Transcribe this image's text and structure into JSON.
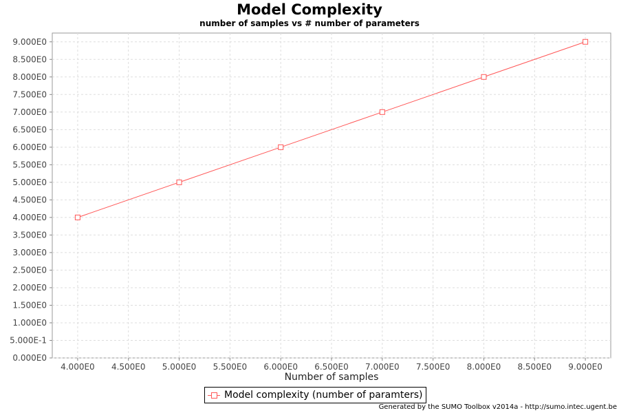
{
  "chart_data": {
    "type": "line",
    "title": "Model Complexity",
    "subtitle": "number of samples vs # number of parameters",
    "xlabel": "Number of samples",
    "ylabel": "",
    "xlim": [
      3.75,
      9.25
    ],
    "ylim": [
      0,
      9.25
    ],
    "x_ticks": [
      "4.000E0",
      "4.500E0",
      "5.000E0",
      "5.500E0",
      "6.000E0",
      "6.500E0",
      "7.000E0",
      "7.500E0",
      "8.000E0",
      "8.500E0",
      "9.000E0"
    ],
    "y_ticks": [
      "0.000E0",
      "5.000E-1",
      "1.000E0",
      "1.500E0",
      "2.000E0",
      "2.500E0",
      "3.000E0",
      "3.500E0",
      "4.000E0",
      "4.500E0",
      "5.000E0",
      "5.500E0",
      "6.000E0",
      "6.500E0",
      "7.000E0",
      "7.500E0",
      "8.000E0",
      "8.500E0",
      "9.000E0"
    ],
    "grid": true,
    "legend": "bottom-center",
    "series": [
      {
        "name": "Model complexity (number of paramters)",
        "color": "#ff5555",
        "marker": "square",
        "x": [
          4,
          5,
          6,
          7,
          8,
          9
        ],
        "y": [
          4,
          5,
          6,
          7,
          8,
          9
        ]
      }
    ]
  },
  "footer": "Generated by the SUMO Toolbox v2014a - http://sumo.intec.ugent.be"
}
